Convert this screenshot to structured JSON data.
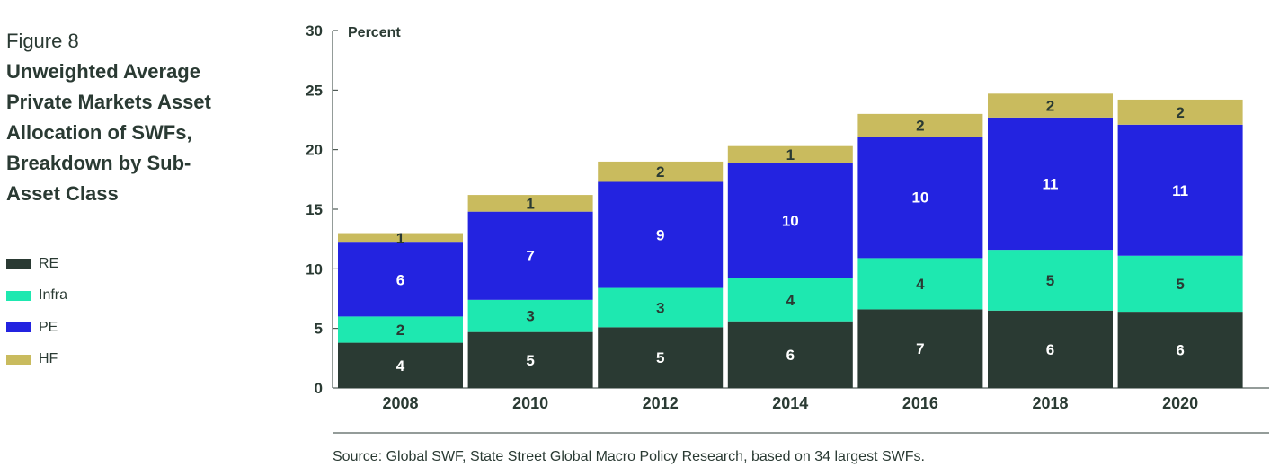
{
  "figure": {
    "label": "Figure 8",
    "title": "Unweighted Average Private Markets Asset Allocation of SWFs, Breakdown by Sub-Asset Class"
  },
  "source": "Source: Global SWF, State Street Global Macro Policy Research, based on 34 largest SWFs.",
  "colors": {
    "RE": "#2a3a33",
    "Infra": "#1ee8b0",
    "PE": "#2323e0",
    "HF": "#c9bb5e",
    "axis": "#2a3a33"
  },
  "chart_data": {
    "type": "bar",
    "stacked": true,
    "categories": [
      "2008",
      "2010",
      "2012",
      "2014",
      "2016",
      "2018",
      "2020"
    ],
    "ylabel": "Percent",
    "ylim": [
      0,
      30
    ],
    "yticks": [
      0,
      5,
      10,
      15,
      20,
      25,
      30
    ],
    "grid": false,
    "legend_position": "left",
    "series": [
      {
        "name": "RE",
        "values": [
          3.8,
          4.7,
          5.1,
          5.6,
          6.6,
          6.5,
          6.4
        ],
        "labels": [
          "4",
          "5",
          "5",
          "6",
          "7",
          "6",
          "6"
        ]
      },
      {
        "name": "Infra",
        "values": [
          2.2,
          2.7,
          3.3,
          3.6,
          4.3,
          5.1,
          4.7
        ],
        "labels": [
          "2",
          "3",
          "3",
          "4",
          "4",
          "5",
          "5"
        ]
      },
      {
        "name": "PE",
        "values": [
          6.2,
          7.4,
          8.9,
          9.7,
          10.2,
          11.1,
          11.0
        ],
        "labels": [
          "6",
          "7",
          "9",
          "10",
          "10",
          "11",
          "11"
        ]
      },
      {
        "name": "HF",
        "values": [
          0.8,
          1.4,
          1.7,
          1.4,
          1.9,
          2.0,
          2.1
        ],
        "labels": [
          "1",
          "1",
          "2",
          "1",
          "2",
          "2",
          "2"
        ]
      }
    ]
  }
}
